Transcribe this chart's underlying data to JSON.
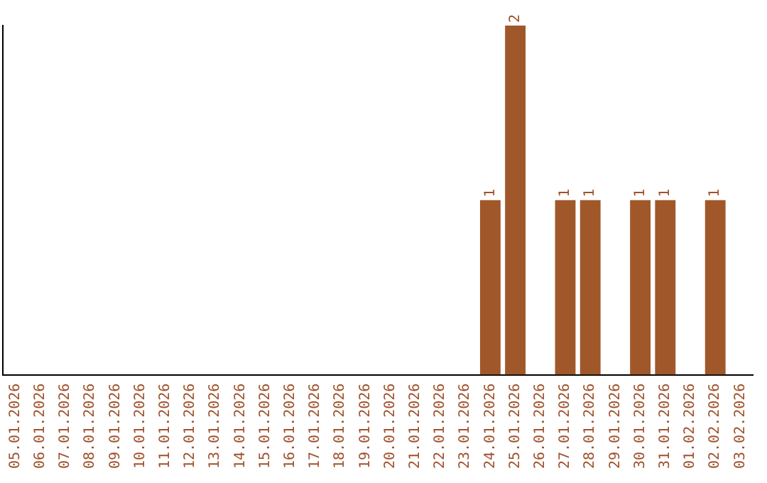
{
  "chart_data": {
    "type": "bar",
    "categories": [
      "05.01.2026",
      "06.01.2026",
      "07.01.2026",
      "08.01.2026",
      "09.01.2026",
      "10.01.2026",
      "11.01.2026",
      "12.01.2026",
      "13.01.2026",
      "14.01.2026",
      "15.01.2026",
      "16.01.2026",
      "17.01.2026",
      "18.01.2026",
      "19.01.2026",
      "20.01.2026",
      "21.01.2026",
      "22.01.2026",
      "23.01.2026",
      "24.01.2026",
      "25.01.2026",
      "26.01.2026",
      "27.01.2026",
      "28.01.2026",
      "29.01.2026",
      "30.01.2026",
      "31.01.2026",
      "01.02.2026",
      "02.02.2026",
      "03.02.2026"
    ],
    "values": [
      null,
      null,
      null,
      null,
      null,
      null,
      null,
      null,
      null,
      null,
      null,
      null,
      null,
      null,
      null,
      null,
      null,
      null,
      null,
      1,
      2,
      null,
      1,
      1,
      null,
      1,
      1,
      null,
      1,
      null
    ],
    "data_labels": true,
    "color": "#a0582a",
    "grid": false,
    "legend": false,
    "tick_labels": "x"
  }
}
